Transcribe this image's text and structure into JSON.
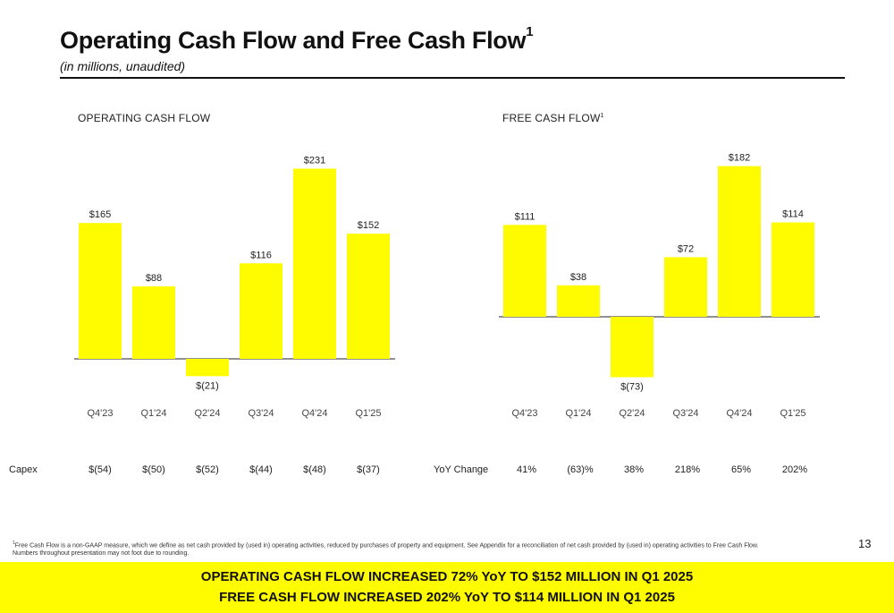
{
  "header": {
    "title": "Operating Cash Flow and Free Cash Flow",
    "title_sup": "1",
    "subtitle": "(in millions, unaudited)"
  },
  "colors": {
    "bar": "#FFFC00",
    "banner": "#FFFC00",
    "text": "#111111"
  },
  "chart_data": [
    {
      "type": "bar",
      "title": "OPERATING CASH FLOW",
      "title_sup": "",
      "categories": [
        "Q4'23",
        "Q1'24",
        "Q2'24",
        "Q3'24",
        "Q4'24",
        "Q1'25"
      ],
      "values": [
        165,
        88,
        -21,
        116,
        231,
        152
      ],
      "data_labels": [
        "$165",
        "$88",
        "$(21)",
        "$116",
        "$231",
        "$152"
      ],
      "xlabel": "",
      "ylabel": "",
      "grid": false
    },
    {
      "type": "bar",
      "title": "FREE CASH FLOW",
      "title_sup": "1",
      "categories": [
        "Q4'23",
        "Q1'24",
        "Q2'24",
        "Q3'24",
        "Q4'24",
        "Q1'25"
      ],
      "values": [
        111,
        38,
        -73,
        72,
        182,
        114
      ],
      "data_labels": [
        "$111",
        "$38",
        "$(73)",
        "$72",
        "$182",
        "$114"
      ],
      "xlabel": "",
      "ylabel": "",
      "grid": false
    }
  ],
  "capex": {
    "label": "Capex",
    "values": [
      "$(54)",
      "$(50)",
      "$(52)",
      "$(44)",
      "$(48)",
      "$(37)"
    ]
  },
  "yoy": {
    "label": "YoY Change",
    "values": [
      "41%",
      "(63)%",
      "38%",
      "218%",
      "65%",
      "202%"
    ]
  },
  "footnote": {
    "sup": "1",
    "line1": "Free Cash Flow is a non-GAAP measure, which we define as net cash provided by (used in) operating activities, reduced by purchases of property and equipment. See Appendix for a reconciliation of net cash provided by (used in) operating activities to Free Cash Flow.",
    "line2": "Numbers throughout presentation may not foot due to rounding."
  },
  "page_number": "13",
  "banner": {
    "line1": "OPERATING CASH FLOW INCREASED 72% YoY TO $152 MILLION IN Q1 2025",
    "line2": "FREE CASH FLOW INCREASED 202% YoY TO $114 MILLION IN Q1 2025"
  }
}
